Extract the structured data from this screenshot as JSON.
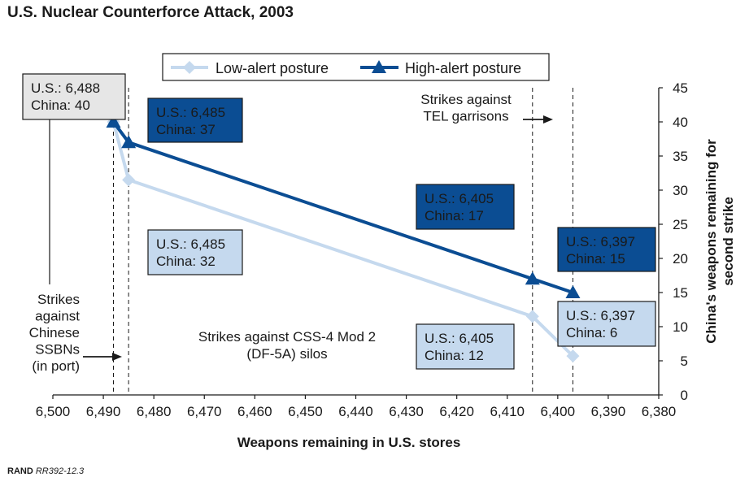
{
  "chart_data": {
    "type": "line",
    "title": "U.S. Nuclear Counterforce Attack, 2003",
    "xlabel": "Weapons remaining in U.S. stores",
    "ylabel_lines": [
      "China's weapons remaining for",
      "second strike"
    ],
    "xlim": [
      6500,
      6380
    ],
    "ylim": [
      0,
      45
    ],
    "x_ticks": [
      6500,
      6490,
      6480,
      6470,
      6460,
      6450,
      6440,
      6430,
      6420,
      6410,
      6400,
      6390,
      6380
    ],
    "x_tick_labels": [
      "6,500",
      "6,490",
      "6,480",
      "6,470",
      "6,460",
      "6,450",
      "6,440",
      "6,430",
      "6,420",
      "6,410",
      "6,400",
      "6,390",
      "6,380"
    ],
    "y_ticks": [
      0,
      5,
      10,
      15,
      20,
      25,
      30,
      35,
      40,
      45
    ],
    "y_tick_labels": [
      "0",
      "5",
      "10",
      "15",
      "20",
      "25",
      "30",
      "35",
      "40",
      "45"
    ],
    "series": [
      {
        "name": "Low-alert posture",
        "color": "#c5d9ee",
        "marker": "diamond",
        "points": [
          [
            6488,
            40
          ],
          [
            6485,
            31.5
          ],
          [
            6405,
            11.5
          ],
          [
            6397,
            5.7
          ]
        ]
      },
      {
        "name": "High-alert posture",
        "color": "#0b4d93",
        "marker": "triangle",
        "points": [
          [
            6488,
            40
          ],
          [
            6485,
            37
          ],
          [
            6405,
            17
          ],
          [
            6397,
            15
          ]
        ]
      }
    ],
    "reference_lines_x": [
      6488,
      6485,
      6405,
      6397
    ],
    "callouts": [
      {
        "lines": [
          "U.S.: 6,488",
          "China: 40"
        ],
        "style": "gray"
      },
      {
        "lines": [
          "U.S.: 6,485",
          "China: 37"
        ],
        "style": "dark"
      },
      {
        "lines": [
          "U.S.: 6,485",
          "China: 32"
        ],
        "style": "light"
      },
      {
        "lines": [
          "U.S.: 6,405",
          "China: 17"
        ],
        "style": "dark"
      },
      {
        "lines": [
          "U.S.: 6,405",
          "China: 12"
        ],
        "style": "light"
      },
      {
        "lines": [
          "U.S.: 6,397",
          "China: 15"
        ],
        "style": "dark"
      },
      {
        "lines": [
          "U.S.: 6,397",
          "China: 6"
        ],
        "style": "light"
      }
    ],
    "annotations": {
      "ssbn": [
        "Strikes",
        "against",
        "Chinese",
        "SSBNs",
        "(in port)"
      ],
      "silos": [
        "Strikes against CSS-4 Mod 2",
        "(DF-5A) silos"
      ],
      "tel": [
        "Strikes against",
        "TEL garrisons"
      ]
    },
    "legend_position": "top-center",
    "grid": false
  },
  "source": {
    "org": "RAND",
    "id": "RR392-12.3"
  },
  "colors": {
    "dark_series": "#0b4d93",
    "light_series": "#c5d9ee",
    "gray_box": "#e6e6e6"
  }
}
